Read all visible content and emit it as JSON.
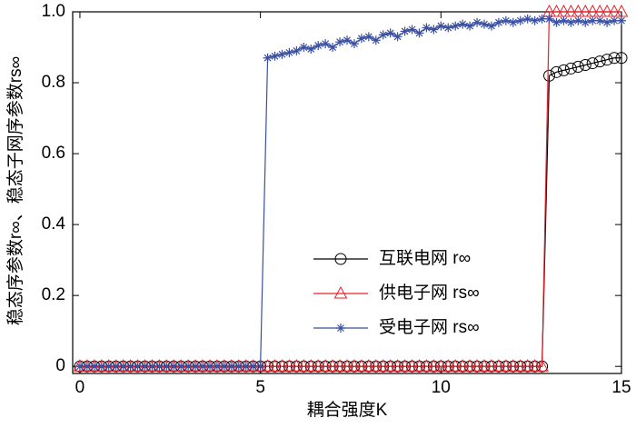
{
  "chart_data": {
    "type": "line",
    "xlabel": "耦合强度K",
    "ylabel": "稳态序参数r∞、稳态子网序参数rs∞",
    "x": [
      0,
      0.2,
      0.4,
      0.6,
      0.8,
      1,
      1.2,
      1.4,
      1.6,
      1.8,
      2,
      2.2,
      2.4,
      2.6,
      2.8,
      3,
      3.2,
      3.4,
      3.6,
      3.8,
      4,
      4.2,
      4.4,
      4.6,
      4.8,
      5,
      5.2,
      5.4,
      5.6,
      5.8,
      6,
      6.2,
      6.4,
      6.6,
      6.8,
      7,
      7.2,
      7.4,
      7.6,
      7.8,
      8,
      8.2,
      8.4,
      8.6,
      8.8,
      9,
      9.2,
      9.4,
      9.6,
      9.8,
      10,
      10.2,
      10.4,
      10.6,
      10.8,
      11,
      11.2,
      11.4,
      11.6,
      11.8,
      12,
      12.2,
      12.4,
      12.6,
      12.8,
      13,
      13.2,
      13.4,
      13.6,
      13.8,
      14,
      14.2,
      14.4,
      14.6,
      14.8,
      15
    ],
    "series": [
      {
        "name": "互联电网 r∞",
        "color": "#000000",
        "marker": "circle",
        "values": [
          0,
          0,
          0,
          0,
          0,
          0,
          0,
          0,
          0,
          0,
          0,
          0,
          0,
          0,
          0,
          0,
          0,
          0,
          0,
          0,
          0,
          0,
          0,
          0,
          0,
          0,
          0,
          0,
          0,
          0,
          0,
          0,
          0,
          0,
          0,
          0,
          0,
          0,
          0,
          0,
          0,
          0,
          0,
          0,
          0,
          0,
          0,
          0,
          0,
          0,
          0,
          0,
          0,
          0,
          0,
          0,
          0,
          0,
          0,
          0,
          0,
          0,
          0,
          0,
          0,
          0.82,
          0.83,
          0.835,
          0.84,
          0.845,
          0.85,
          0.855,
          0.86,
          0.865,
          0.87,
          0.87
        ]
      },
      {
        "name": "供电子网 rs∞",
        "color": "#e8202a",
        "marker": "triangle",
        "values": [
          0,
          0,
          0,
          0,
          0,
          0,
          0,
          0,
          0,
          0,
          0,
          0,
          0,
          0,
          0,
          0,
          0,
          0,
          0,
          0,
          0,
          0,
          0,
          0,
          0,
          0,
          0,
          0,
          0,
          0,
          0,
          0,
          0,
          0,
          0,
          0,
          0,
          0,
          0,
          0,
          0,
          0,
          0,
          0,
          0,
          0,
          0,
          0,
          0,
          0,
          0,
          0,
          0,
          0,
          0,
          0,
          0,
          0,
          0,
          0,
          0,
          0,
          0,
          0,
          0,
          1,
          1,
          1,
          1,
          1,
          1,
          1,
          1,
          1,
          1,
          1
        ]
      },
      {
        "name": "受电子网 rs∞",
        "color": "#3a4fa0",
        "marker": "star",
        "values": [
          0,
          0,
          0,
          0,
          0,
          0,
          0,
          0,
          0,
          0,
          0,
          0,
          0,
          0,
          0,
          0,
          0,
          0,
          0,
          0,
          0,
          0,
          0,
          0,
          0,
          0,
          0.87,
          0.875,
          0.88,
          0.885,
          0.89,
          0.9,
          0.895,
          0.905,
          0.91,
          0.9,
          0.915,
          0.92,
          0.91,
          0.925,
          0.93,
          0.92,
          0.935,
          0.94,
          0.93,
          0.945,
          0.95,
          0.94,
          0.955,
          0.95,
          0.96,
          0.955,
          0.96,
          0.965,
          0.96,
          0.97,
          0.965,
          0.96,
          0.97,
          0.975,
          0.97,
          0.975,
          0.98,
          0.975,
          0.98,
          0.98,
          0.97,
          0.975,
          0.97,
          0.975,
          0.97,
          0.975,
          0.975,
          0.97,
          0.975,
          0.975
        ]
      }
    ],
    "xlim": [
      -0.2,
      15
    ],
    "ylim": [
      -0.02,
      1
    ],
    "xticks": [
      0,
      5,
      10,
      15
    ],
    "yticks": [
      0,
      0.2,
      0.4,
      0.6,
      0.8,
      {
        "value": 1,
        "label": "1.0"
      }
    ],
    "legend": "lower right"
  }
}
